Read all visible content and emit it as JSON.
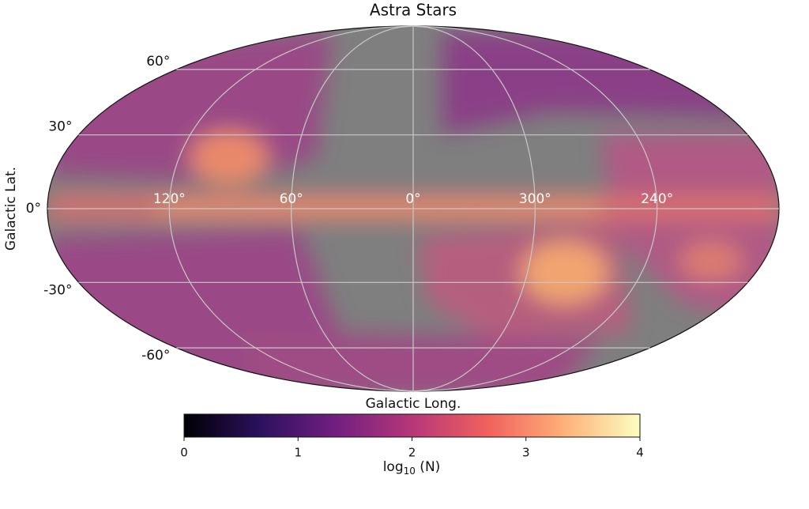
{
  "chart_data": {
    "type": "mollweide",
    "title": "Astra Stars",
    "xlabel": "Galactic Long.",
    "ylabel": "Galactic Lat.",
    "xticks": [
      {
        "value": 120,
        "label": "120°"
      },
      {
        "value": 60,
        "label": "60°"
      },
      {
        "value": 0,
        "label": "0°"
      },
      {
        "value": 300,
        "label": "300°"
      },
      {
        "value": 240,
        "label": "240°"
      }
    ],
    "yticks": [
      {
        "value": 60,
        "label": "60°"
      },
      {
        "value": 30,
        "label": "30°"
      },
      {
        "value": 0,
        "label": "0°"
      },
      {
        "value": -30,
        "label": "-30°"
      },
      {
        "value": -60,
        "label": "-60°"
      }
    ],
    "grid": true,
    "colorbar": {
      "clim": [
        0,
        4
      ],
      "ticks": [
        0,
        1,
        2,
        3,
        4
      ],
      "label": [
        "log",
        "10",
        " (N)"
      ],
      "colormap": [
        "#000004",
        "#2c115f",
        "#721f81",
        "#b73779",
        "#f1605d",
        "#feb078",
        "#fcfdbf"
      ]
    }
  }
}
